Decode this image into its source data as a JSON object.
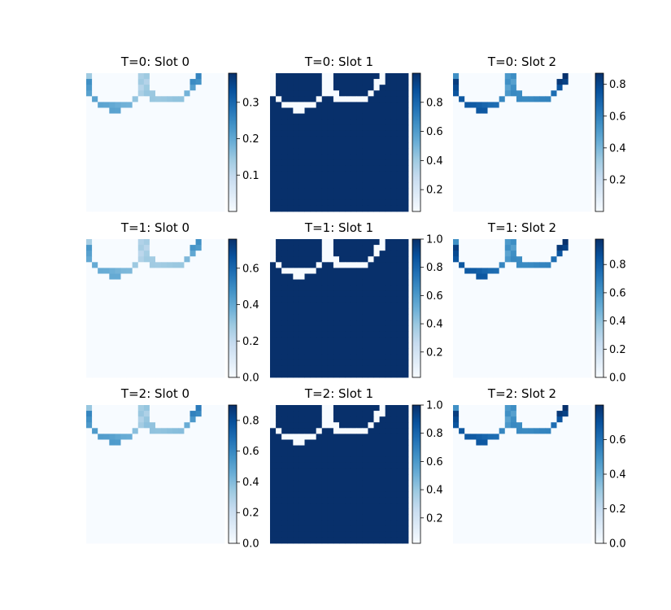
{
  "figure": {
    "background": "#ffffff"
  },
  "colormap": {
    "name": "Blues",
    "light": "#f7fbff",
    "dark": "#08306b"
  },
  "chart_data": [
    {
      "type": "heatmap",
      "title": "T=0: Slot 0",
      "grid": false,
      "colorbar": {
        "ticks": [
          "0.1",
          "0.2",
          "0.3"
        ],
        "tick_values": [
          0.1,
          0.2,
          0.3
        ],
        "range": [
          0.0,
          0.38
        ]
      },
      "pattern": "edges_weak",
      "vmax_fraction": 0.85
    },
    {
      "type": "heatmap",
      "title": "T=0: Slot 1",
      "grid": false,
      "colorbar": {
        "ticks": [
          "0.2",
          "0.4",
          "0.6",
          "0.8"
        ],
        "tick_values": [
          0.2,
          0.4,
          0.6,
          0.8
        ],
        "range": [
          0.05,
          1.0
        ]
      },
      "pattern": "background"
    },
    {
      "type": "heatmap",
      "title": "T=0: Slot 2",
      "grid": false,
      "colorbar": {
        "ticks": [
          "0.2",
          "0.4",
          "0.6",
          "0.8"
        ],
        "tick_values": [
          0.2,
          0.4,
          0.6,
          0.8
        ],
        "range": [
          0.0,
          0.87
        ]
      },
      "pattern": "edges_strong"
    },
    {
      "type": "heatmap",
      "title": "T=1: Slot 0",
      "grid": false,
      "colorbar": {
        "ticks": [
          "0.0",
          "0.2",
          "0.4",
          "0.6"
        ],
        "tick_values": [
          0.0,
          0.2,
          0.4,
          0.6
        ],
        "range": [
          0.0,
          0.76
        ]
      },
      "pattern": "edges_weak",
      "vmax_fraction": 0.8
    },
    {
      "type": "heatmap",
      "title": "T=1: Slot 1",
      "grid": false,
      "colorbar": {
        "ticks": [
          "0.2",
          "0.4",
          "0.6",
          "0.8",
          "1.0"
        ],
        "tick_values": [
          0.2,
          0.4,
          0.6,
          0.8,
          1.0
        ],
        "range": [
          0.02,
          1.0
        ]
      },
      "pattern": "background"
    },
    {
      "type": "heatmap",
      "title": "T=1: Slot 2",
      "grid": false,
      "colorbar": {
        "ticks": [
          "0.0",
          "0.2",
          "0.4",
          "0.6",
          "0.8"
        ],
        "tick_values": [
          0.0,
          0.2,
          0.4,
          0.6,
          0.8
        ],
        "range": [
          0.0,
          0.98
        ]
      },
      "pattern": "edges_strong"
    },
    {
      "type": "heatmap",
      "title": "T=2: Slot 0",
      "grid": false,
      "colorbar": {
        "ticks": [
          "0.0",
          "0.2",
          "0.4",
          "0.6",
          "0.8"
        ],
        "tick_values": [
          0.0,
          0.2,
          0.4,
          0.6,
          0.8
        ],
        "range": [
          0.0,
          0.9
        ]
      },
      "pattern": "edges_weak",
      "vmax_fraction": 0.9
    },
    {
      "type": "heatmap",
      "title": "T=2: Slot 1",
      "grid": false,
      "colorbar": {
        "ticks": [
          "0.2",
          "0.4",
          "0.6",
          "0.8",
          "1.0"
        ],
        "tick_values": [
          0.2,
          0.4,
          0.6,
          0.8,
          1.0
        ],
        "range": [
          0.02,
          1.0
        ]
      },
      "pattern": "background"
    },
    {
      "type": "heatmap",
      "title": "T=2: Slot 2",
      "grid": false,
      "colorbar": {
        "ticks": [
          "0.0",
          "0.2",
          "0.4",
          "0.6"
        ],
        "tick_values": [
          0.0,
          0.2,
          0.4,
          0.6
        ],
        "range": [
          0.0,
          0.8
        ]
      },
      "pattern": "edges_strong"
    }
  ]
}
